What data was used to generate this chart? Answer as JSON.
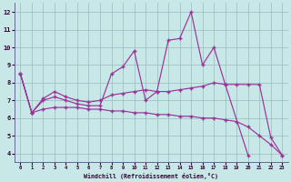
{
  "xlabel": "Windchill (Refroidissement éolien,°C)",
  "bg_color": "#c8e8e8",
  "grid_color": "#99bbbb",
  "line_color": "#993399",
  "xlim": [
    -0.5,
    23.5
  ],
  "ylim": [
    3.5,
    12.5
  ],
  "yticks": [
    4,
    5,
    6,
    7,
    8,
    9,
    10,
    11,
    12
  ],
  "xticks": [
    0,
    1,
    2,
    3,
    4,
    5,
    6,
    7,
    8,
    9,
    10,
    11,
    12,
    13,
    14,
    15,
    16,
    17,
    18,
    19,
    20,
    21,
    22,
    23
  ],
  "line1_x": [
    0,
    1,
    2,
    3,
    4,
    5,
    6,
    7,
    8,
    9,
    10,
    11,
    12,
    13,
    14,
    15,
    16,
    17,
    18,
    20
  ],
  "line1_y": [
    8.5,
    6.3,
    7.0,
    7.2,
    7.0,
    6.8,
    6.7,
    6.7,
    8.5,
    8.9,
    9.8,
    7.0,
    7.5,
    10.4,
    10.5,
    12.0,
    9.0,
    10.0,
    7.9,
    3.9
  ],
  "line2_x": [
    0,
    1,
    2,
    3,
    4,
    5,
    6,
    7,
    8,
    9,
    10,
    11,
    12,
    13,
    14,
    15,
    16,
    17,
    18,
    19,
    20,
    21,
    22,
    23
  ],
  "line2_y": [
    8.5,
    6.3,
    6.5,
    6.6,
    6.6,
    6.6,
    6.5,
    6.5,
    6.4,
    6.4,
    6.3,
    6.3,
    6.2,
    6.2,
    6.1,
    6.1,
    6.0,
    6.0,
    5.9,
    5.8,
    5.5,
    5.0,
    4.5,
    3.9
  ],
  "line3_x": [
    0,
    1,
    2,
    3,
    4,
    5,
    6,
    7,
    8,
    9,
    10,
    11,
    12,
    13,
    14,
    15,
    16,
    17,
    18,
    19,
    20,
    21,
    22,
    23
  ],
  "line3_y": [
    8.5,
    6.3,
    7.1,
    7.5,
    7.2,
    7.0,
    6.9,
    7.0,
    7.3,
    7.4,
    7.5,
    7.6,
    7.5,
    7.5,
    7.6,
    7.7,
    7.8,
    8.0,
    7.9,
    7.9,
    7.9,
    7.9,
    4.9,
    3.9
  ]
}
